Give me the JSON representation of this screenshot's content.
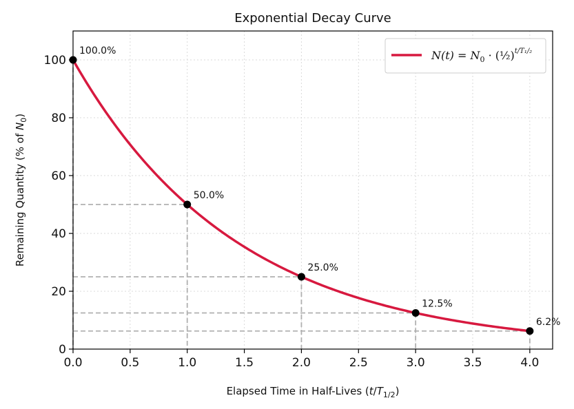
{
  "chart_data": {
    "type": "line",
    "title": "Exponential Decay Curve",
    "xlabel": "Elapsed Time in Half-Lives (t/T₁₂)",
    "xlabel_parts": {
      "prefix": "Elapsed Time in Half-Lives (",
      "var_t": "t",
      "slash": "/",
      "var_T": "T",
      "sub": "1/2",
      "suffix": ")"
    },
    "ylabel": "Remaining Quantity (% of N₀)",
    "ylabel_parts": {
      "prefix": "Remaining Quantity (% of ",
      "var_N": "N",
      "sub": "0",
      "suffix": ")"
    },
    "xlim": [
      0,
      4.2
    ],
    "ylim": [
      0,
      110
    ],
    "xticks": [
      0.0,
      0.5,
      1.0,
      1.5,
      2.0,
      2.5,
      3.0,
      3.5,
      4.0
    ],
    "xtick_labels": [
      "0.0",
      "0.5",
      "1.0",
      "1.5",
      "2.0",
      "2.5",
      "3.0",
      "3.5",
      "4.0"
    ],
    "yticks": [
      0,
      20,
      40,
      60,
      80,
      100
    ],
    "ytick_labels": [
      "0",
      "20",
      "40",
      "60",
      "80",
      "100"
    ],
    "grid": true,
    "legend_position": "top-right",
    "series": [
      {
        "name": "N(t) = N0 · (1/2)^(t/T1/2)",
        "color": "#d7193f",
        "x": [
          0.0,
          0.25,
          0.5,
          0.75,
          1.0,
          1.25,
          1.5,
          1.75,
          2.0,
          2.25,
          2.5,
          2.75,
          3.0,
          3.25,
          3.5,
          3.75,
          4.0
        ],
        "y": [
          100.0,
          84.1,
          70.7,
          59.5,
          50.0,
          42.0,
          35.4,
          29.7,
          25.0,
          21.0,
          17.7,
          14.9,
          12.5,
          10.5,
          8.8,
          7.4,
          6.25
        ]
      }
    ],
    "marked_points": {
      "x": [
        0,
        1,
        2,
        3,
        4
      ],
      "y": [
        100,
        50,
        25,
        12.5,
        6.25
      ],
      "labels": [
        "100.0%",
        "50.0%",
        "25.0%",
        "12.5%",
        "6.2%"
      ],
      "color": "#000000"
    },
    "reference_line_color": "#b0b0b0"
  }
}
